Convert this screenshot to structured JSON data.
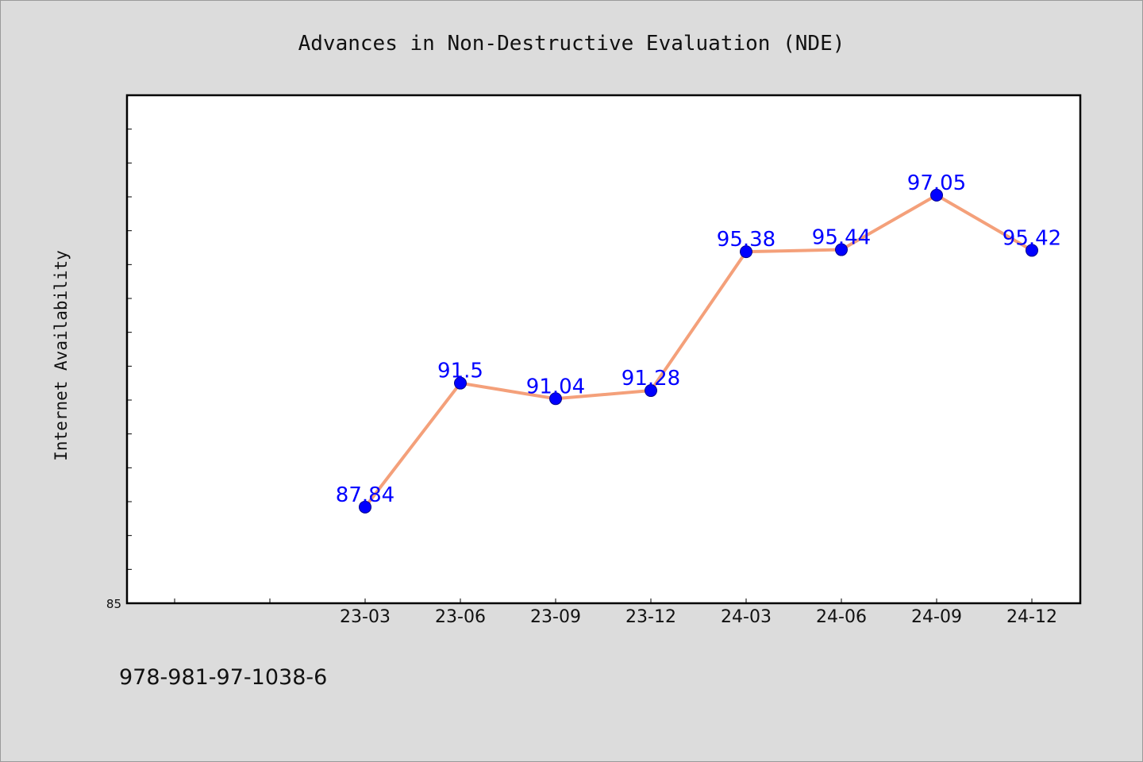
{
  "chart_data": {
    "type": "line",
    "title": "Advances in Non-Destructive Evaluation (NDE)",
    "xlabel": "",
    "ylabel": "Internet Availability",
    "categories": [
      "23-03",
      "23-06",
      "23-09",
      "23-12",
      "24-03",
      "24-06",
      "24-09",
      "24-12"
    ],
    "series": [
      {
        "values": [
          87.84,
          91.5,
          91.04,
          91.28,
          95.38,
          95.44,
          97.05,
          95.42
        ]
      }
    ],
    "data_labels": [
      "87.84",
      "91.5",
      "91.04",
      "91.28",
      "95.38",
      "95.44",
      "97.05",
      "95.42"
    ],
    "ylim": [
      85,
      100
    ],
    "ytick_labels": [
      "85"
    ],
    "grid": false,
    "colors": {
      "line": "#f4a07a",
      "marker": "#0000ff",
      "label": "#0000ff",
      "background": "#dcdcdc",
      "plot_area": "#ffffff"
    }
  },
  "footer": {
    "isbn": "978-981-97-1038-6"
  }
}
